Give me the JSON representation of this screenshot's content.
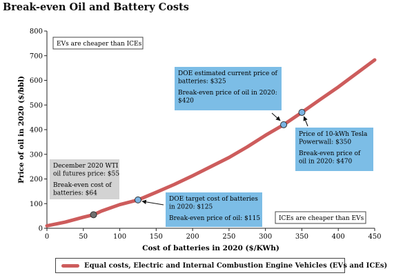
{
  "title": "Break-even Oil and Battery Costs",
  "chart_data": {
    "type": "line",
    "xlabel": "Cost of batteries in 2020 ($/KWh)",
    "ylabel": "Price of oil in 2020 ($/bbl)",
    "xlim": [
      0,
      450
    ],
    "ylim": [
      0,
      800
    ],
    "xticks": [
      0,
      50,
      100,
      150,
      200,
      250,
      300,
      350,
      400,
      450
    ],
    "yticks": [
      0,
      100,
      200,
      300,
      400,
      500,
      600,
      700,
      800
    ],
    "grid": false,
    "legend_position": "bottom",
    "series": [
      {
        "name": "Equal costs, Electric and Internal Combustion Engine Vehicles (EVs and ICEs)",
        "color": "#cd5c5c",
        "x": [
          0,
          25,
          50,
          64,
          75,
          100,
          125,
          150,
          175,
          200,
          225,
          250,
          275,
          300,
          325,
          350,
          375,
          400,
          425,
          450
        ],
        "y": [
          10,
          25,
          45,
          55,
          70,
          96,
          115,
          146,
          178,
          213,
          250,
          287,
          330,
          377,
          420,
          470,
          522,
          573,
          628,
          683
        ]
      }
    ],
    "points": [
      {
        "x": 64,
        "y": 55,
        "color": "#707070"
      },
      {
        "x": 125,
        "y": 115,
        "color": "#7cb4e2"
      },
      {
        "x": 325,
        "y": 420,
        "color": "#7cb4e2"
      },
      {
        "x": 350,
        "y": 470,
        "color": "#7cb4e2"
      }
    ],
    "annotations": [
      {
        "name": "evs-cheaper-label",
        "lines": [
          "EVs are cheaper than ICEs"
        ],
        "style": "plain"
      },
      {
        "name": "doe-current-callout",
        "lines": [
          "DOE estimated current price of",
          "batteries: $325",
          "",
          "Break-even price of oil in 2020:",
          "$420"
        ],
        "style": "blue"
      },
      {
        "name": "tesla-powerwall-callout",
        "lines": [
          "Price of 10-kWh Tesla",
          "Powerwall: $350",
          "",
          "Break-even price of",
          "oil in 2020: $470"
        ],
        "style": "blue"
      },
      {
        "name": "wti-futures-callout",
        "lines": [
          "December 2020 WTI",
          "oil futures price: $55",
          "",
          "Break-even cost of",
          "batteries: $64"
        ],
        "style": "gray"
      },
      {
        "name": "doe-target-callout",
        "lines": [
          "DOE target cost of batteries",
          "in 2020: $125",
          "",
          "Break-even price of oil: $115"
        ],
        "style": "blue"
      },
      {
        "name": "ices-cheaper-label",
        "lines": [
          "ICEs are cheaper than EVs"
        ],
        "style": "plain"
      }
    ]
  },
  "colors": {
    "callout_blue": "#7cbde6",
    "callout_gray": "#d3d3d3",
    "line": "#cd5c5c"
  }
}
